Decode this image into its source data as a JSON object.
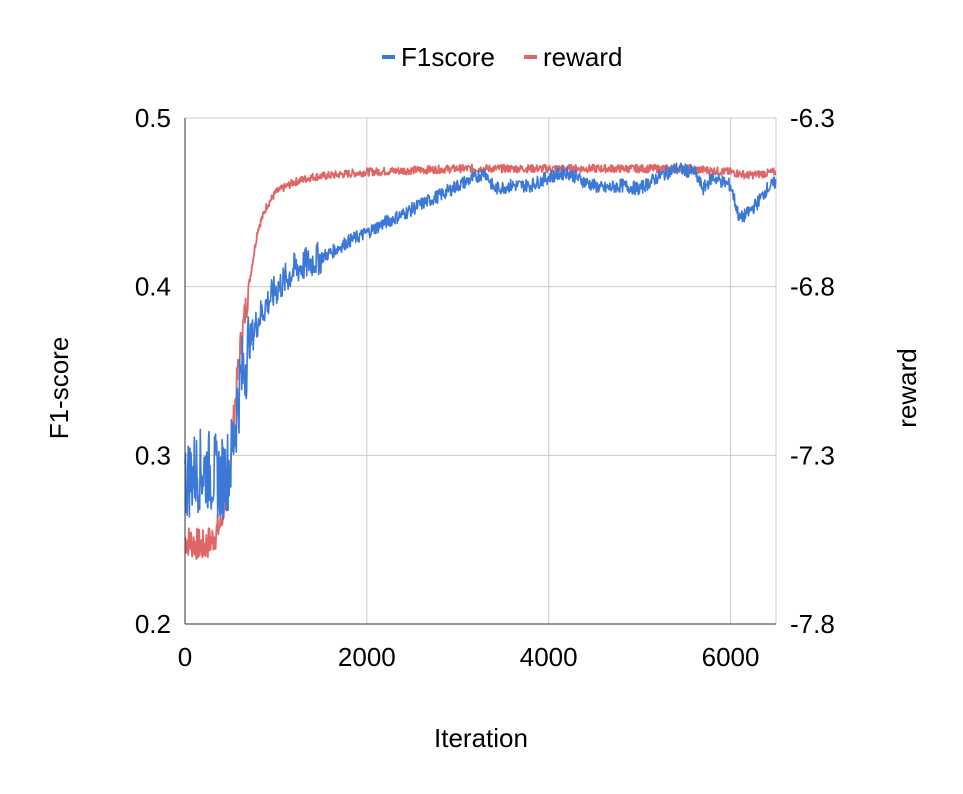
{
  "chart_data": {
    "type": "line",
    "title": "",
    "xlabel": "Iteration",
    "ylabel": "F1-score",
    "y2label": "reward",
    "xlim": [
      0,
      6500
    ],
    "ylim": [
      0.2,
      0.5
    ],
    "y2lim": [
      -7.8,
      -6.3
    ],
    "x_ticks": [
      0,
      2000,
      4000,
      6000
    ],
    "y_ticks": [
      0.2,
      0.3,
      0.4,
      0.5
    ],
    "y_tick_labels": [
      "0.2",
      "0.3",
      "0.4",
      "0.5"
    ],
    "y2_ticks": [
      -7.8,
      -7.3,
      -6.8,
      -6.3
    ],
    "grid": true,
    "legend_position": "top",
    "series": [
      {
        "name": "F1score",
        "axis": "left",
        "color": "#3c78d8",
        "x": [
          0,
          100,
          200,
          300,
          400,
          500,
          600,
          700,
          800,
          900,
          1000,
          1200,
          1400,
          1600,
          1800,
          2000,
          2200,
          2400,
          2600,
          2800,
          3000,
          3200,
          3300,
          3400,
          3600,
          3800,
          4000,
          4200,
          4400,
          4600,
          4800,
          5000,
          5200,
          5400,
          5600,
          5700,
          5800,
          6000,
          6100,
          6200,
          6300,
          6400,
          6500
        ],
        "values": [
          0.285,
          0.29,
          0.292,
          0.29,
          0.285,
          0.295,
          0.34,
          0.365,
          0.38,
          0.39,
          0.398,
          0.41,
          0.415,
          0.42,
          0.427,
          0.432,
          0.438,
          0.443,
          0.449,
          0.454,
          0.46,
          0.465,
          0.468,
          0.458,
          0.46,
          0.46,
          0.465,
          0.468,
          0.462,
          0.458,
          0.46,
          0.458,
          0.465,
          0.47,
          0.468,
          0.458,
          0.465,
          0.46,
          0.44,
          0.444,
          0.45,
          0.458,
          0.462
        ]
      },
      {
        "name": "reward",
        "axis": "right",
        "color": "#e06666",
        "x": [
          0,
          100,
          200,
          300,
          400,
          500,
          600,
          700,
          800,
          900,
          1000,
          1200,
          1400,
          1600,
          2000,
          2500,
          3000,
          3500,
          4000,
          4500,
          5000,
          5500,
          6000,
          6200,
          6500
        ],
        "values": [
          -7.55,
          -7.56,
          -7.57,
          -7.55,
          -7.5,
          -7.3,
          -7.0,
          -6.8,
          -6.63,
          -6.56,
          -6.52,
          -6.49,
          -6.475,
          -6.47,
          -6.46,
          -6.455,
          -6.45,
          -6.45,
          -6.45,
          -6.45,
          -6.45,
          -6.45,
          -6.46,
          -6.47,
          -6.46
        ]
      }
    ]
  }
}
